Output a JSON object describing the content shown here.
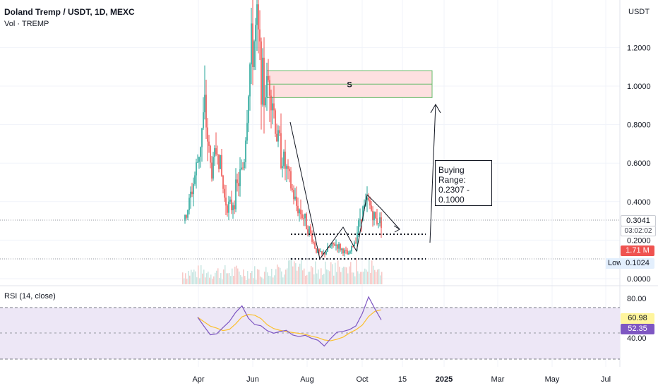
{
  "header": {
    "title": "Doland Tremp / USDT, 1D, MEXC",
    "volume_label": "Vol · TREMP",
    "currency": "USDT",
    "rsi_label": "RSI (14, close)"
  },
  "tags": {
    "last_price": "0.3041",
    "countdown": "03:02:02",
    "volume": "1.71 M",
    "low_label": "Low",
    "low_value": "0.1024",
    "rsi_value": "60.98",
    "rsi_ma_value": "52.35"
  },
  "annotations": {
    "zone_label": "S",
    "buying_range_title": "Buying Range:",
    "buying_range_values": "0.2307 - 0.1000"
  },
  "colors": {
    "up": "#26a69a",
    "down": "#ef5350",
    "rsi_line": "#7e57c2",
    "rsi_ma": "#fbc02d",
    "rsi_band": "#ede7f6",
    "zone_fill": "#fde0e0",
    "zone_border": "#66bb6a"
  },
  "chart_data": [
    {
      "type": "candlestick",
      "title": "Doland Tremp / USDT, 1D, MEXC",
      "y_axis_ticks": [
        "1.2000",
        "1.0000",
        "0.8000",
        "0.6000",
        "0.4000",
        "0.2000",
        "0.0000"
      ],
      "x_axis_ticks": [
        "Apr",
        "Jun",
        "Aug",
        "Oct",
        "15",
        "2025",
        "Mar",
        "May",
        "Jul"
      ],
      "ylim": [
        0,
        1.3
      ],
      "grid": true,
      "sell_zone": [
        0.94,
        1.08
      ],
      "buying_range": [
        0.1,
        0.2307
      ],
      "levels": [
        0.1024,
        0.2307
      ],
      "last_price": 0.3041,
      "low": 0.1024,
      "series_approx_closes": [
        0.3,
        0.45,
        0.62,
        0.88,
        0.55,
        0.7,
        0.42,
        0.36,
        0.48,
        0.6,
        1.15,
        1.3,
        0.95,
        1.05,
        0.75,
        0.62,
        0.5,
        0.38,
        0.33,
        0.25,
        0.15,
        0.12,
        0.16,
        0.18,
        0.15,
        0.12,
        0.2,
        0.35,
        0.4,
        0.31,
        0.3
      ]
    },
    {
      "type": "line",
      "title": "RSI (14, close)",
      "y_axis_ticks": [
        "80.00",
        "40.00"
      ],
      "ylim": [
        30,
        85
      ],
      "band": [
        30,
        70
      ],
      "series": [
        {
          "name": "RSI",
          "values": [
            58,
            52,
            46,
            42,
            48,
            55,
            68,
            74,
            60,
            55,
            50,
            46,
            44,
            48,
            46,
            42,
            40,
            45,
            38,
            36,
            34,
            40,
            44,
            48,
            46,
            54,
            62,
            80,
            70,
            58
          ]
        }
      ]
    }
  ]
}
